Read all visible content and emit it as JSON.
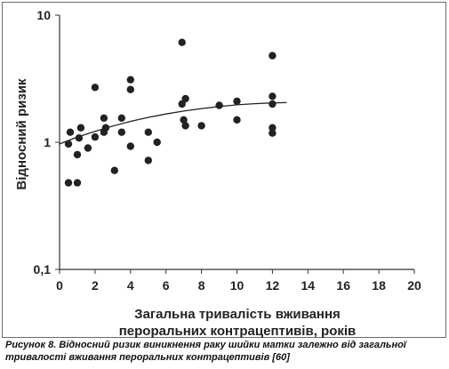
{
  "chart_data": {
    "type": "scatter",
    "xlabel": [
      "Загальна тривалість вживання",
      "пероральних контрацептивів, років"
    ],
    "ylabel": "Відносний ризик",
    "xlim": [
      0,
      20
    ],
    "ylim": [
      0.1,
      10
    ],
    "yscale": "log",
    "x_ticks": [
      0,
      2,
      4,
      6,
      8,
      10,
      12,
      14,
      16,
      18,
      20
    ],
    "y_ticks": [
      {
        "value": 0.1,
        "label": "0,1"
      },
      {
        "value": 1,
        "label": "1"
      },
      {
        "value": 10,
        "label": "10"
      }
    ],
    "points": [
      {
        "x": 0.5,
        "y": 0.48
      },
      {
        "x": 0.5,
        "y": 0.97
      },
      {
        "x": 0.6,
        "y": 1.2
      },
      {
        "x": 1.0,
        "y": 0.48
      },
      {
        "x": 1.0,
        "y": 0.8
      },
      {
        "x": 1.1,
        "y": 1.08
      },
      {
        "x": 1.2,
        "y": 1.3
      },
      {
        "x": 1.6,
        "y": 0.9
      },
      {
        "x": 2.0,
        "y": 1.1
      },
      {
        "x": 2.0,
        "y": 2.7
      },
      {
        "x": 2.5,
        "y": 1.2
      },
      {
        "x": 2.5,
        "y": 1.55
      },
      {
        "x": 2.6,
        "y": 1.3
      },
      {
        "x": 3.1,
        "y": 0.6
      },
      {
        "x": 3.5,
        "y": 1.55
      },
      {
        "x": 3.5,
        "y": 1.2
      },
      {
        "x": 4.0,
        "y": 0.93
      },
      {
        "x": 4.0,
        "y": 2.6
      },
      {
        "x": 4.0,
        "y": 3.1
      },
      {
        "x": 5.0,
        "y": 1.2
      },
      {
        "x": 5.0,
        "y": 0.72
      },
      {
        "x": 5.5,
        "y": 1.0
      },
      {
        "x": 6.9,
        "y": 6.1
      },
      {
        "x": 6.9,
        "y": 2.0
      },
      {
        "x": 7.0,
        "y": 1.5
      },
      {
        "x": 7.1,
        "y": 1.35
      },
      {
        "x": 7.1,
        "y": 2.2
      },
      {
        "x": 8.0,
        "y": 1.35
      },
      {
        "x": 9.0,
        "y": 1.95
      },
      {
        "x": 10.0,
        "y": 2.1
      },
      {
        "x": 10.0,
        "y": 1.5
      },
      {
        "x": 12.0,
        "y": 4.8
      },
      {
        "x": 12.0,
        "y": 2.3
      },
      {
        "x": 12.0,
        "y": 2.0
      },
      {
        "x": 12.0,
        "y": 1.3
      },
      {
        "x": 12.0,
        "y": 1.18
      }
    ],
    "trend_line": [
      {
        "x": 0.0,
        "y": 0.97
      },
      {
        "x": 1.0,
        "y": 1.1
      },
      {
        "x": 2.0,
        "y": 1.22
      },
      {
        "x": 3.0,
        "y": 1.34
      },
      {
        "x": 4.0,
        "y": 1.46
      },
      {
        "x": 5.0,
        "y": 1.57
      },
      {
        "x": 6.0,
        "y": 1.67
      },
      {
        "x": 7.0,
        "y": 1.76
      },
      {
        "x": 8.0,
        "y": 1.84
      },
      {
        "x": 9.0,
        "y": 1.91
      },
      {
        "x": 10.0,
        "y": 1.97
      },
      {
        "x": 11.0,
        "y": 2.01
      },
      {
        "x": 12.0,
        "y": 2.04
      },
      {
        "x": 12.8,
        "y": 2.05
      }
    ],
    "colors": {
      "points": "#222222",
      "line": "#222222",
      "axis": "#333333"
    },
    "grid": false,
    "legend": "none"
  },
  "caption": "Рисунок 8. Відносний ризик виникнення раку шийки матки залежно від загальної тривалості вживання пероральних контрацептивів [60]"
}
